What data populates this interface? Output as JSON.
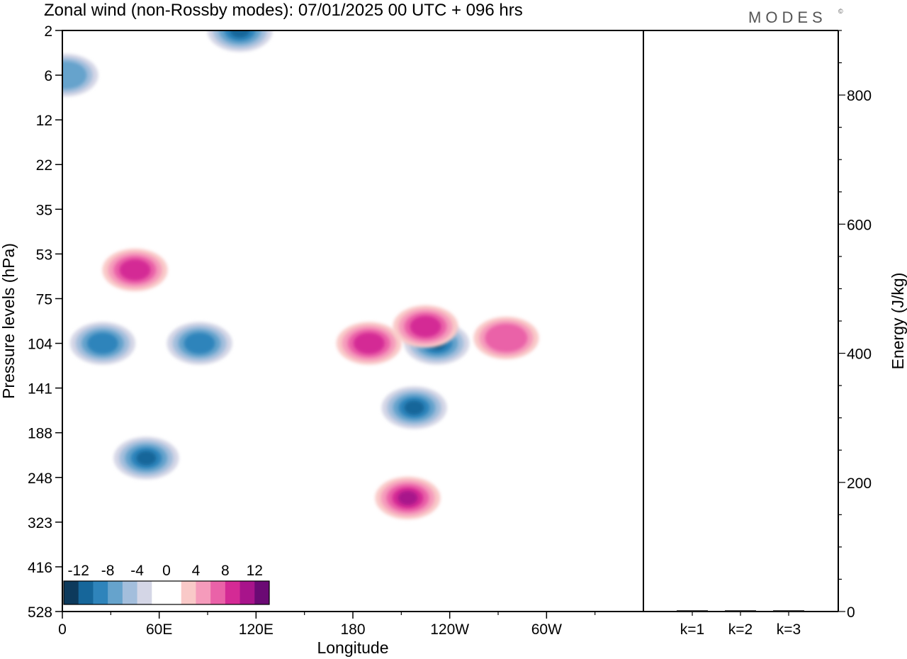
{
  "header": {
    "title": "Zonal wind (non-Rossby modes):  07/01/2025  00 UTC  + 096 hrs",
    "logo": "MODES",
    "logo_mark": "©"
  },
  "chart_data": [
    {
      "type": "heatmap",
      "xlabel": "Longitude",
      "ylabel": "Pressure levels (hPa)",
      "x_ticks": [
        "0",
        "60E",
        "120E",
        "180",
        "120W",
        "60W"
      ],
      "y_ticks": [
        "2",
        "6",
        "12",
        "22",
        "35",
        "53",
        "75",
        "104",
        "141",
        "188",
        "248",
        "323",
        "416",
        "528"
      ],
      "colorbar": {
        "labels": [
          "-12",
          "-8",
          "-4",
          "0",
          "4",
          "8",
          "12"
        ],
        "colors": [
          "#0d3a5c",
          "#16669a",
          "#2f84bb",
          "#66a3cc",
          "#a3bedc",
          "#d4d6e6",
          "#ffffff",
          "#ffffff",
          "#f9c9c8",
          "#f59bbb",
          "#ea62a8",
          "#d42a95",
          "#a8148b",
          "#6b0a74"
        ]
      },
      "features": [
        {
          "sign": "negative",
          "level": 4,
          "lon": 110,
          "pressure": 2
        },
        {
          "sign": "negative",
          "level": 2,
          "lon": 2,
          "pressure": 6
        },
        {
          "sign": "negative",
          "level": 3,
          "lon": 25,
          "pressure": 104
        },
        {
          "sign": "negative",
          "level": 4,
          "lon": 52,
          "pressure": 220
        },
        {
          "sign": "negative",
          "level": 3,
          "lon": 85,
          "pressure": 104
        },
        {
          "sign": "negative",
          "level": 5,
          "lon": 232,
          "pressure": 104
        },
        {
          "sign": "negative",
          "level": 4,
          "lon": 218,
          "pressure": 160
        },
        {
          "sign": "positive",
          "level": 3,
          "lon": 190,
          "pressure": 104
        },
        {
          "sign": "positive",
          "level": 3,
          "lon": 225,
          "pressure": 92
        },
        {
          "sign": "positive",
          "level": 4,
          "lon": 214,
          "pressure": 280
        },
        {
          "sign": "positive",
          "level": 3,
          "lon": 45,
          "pressure": 60
        },
        {
          "sign": "positive",
          "level": 2,
          "lon": 275,
          "pressure": 100
        }
      ]
    },
    {
      "type": "bar",
      "ylabel": "Energy (J/kg)",
      "categories": [
        "k=1",
        "k=2",
        "k=3"
      ],
      "values": [
        2,
        2,
        2
      ],
      "y_ticks": [
        "0",
        "200",
        "400",
        "600",
        "800"
      ],
      "ylim": [
        0,
        900
      ]
    }
  ]
}
